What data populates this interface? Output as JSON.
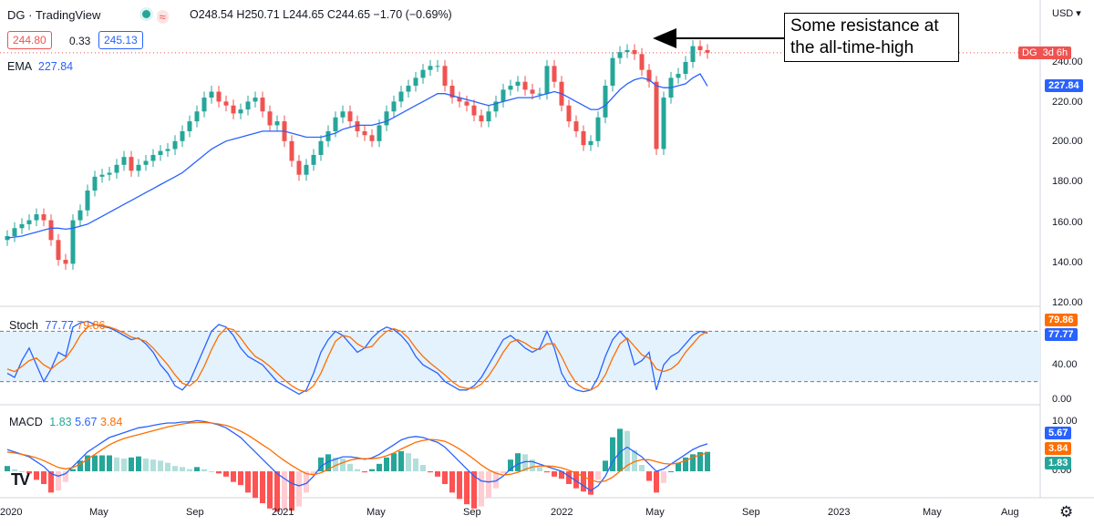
{
  "header": {
    "symbol": "DG",
    "provider": "TradingView",
    "ohlc": "O248.54  H250.71  L244.65  C244.65  −1.70 (−0.69%)",
    "bid": "244.80",
    "spread": "0.33",
    "ask": "245.13",
    "currency": "USD"
  },
  "indicators": {
    "ema_label": "EMA",
    "ema_value": "227.84",
    "stoch_label": "Stoch",
    "stoch_k": "77.77",
    "stoch_d": "79.86",
    "macd_label": "MACD",
    "macd_hist": "1.83",
    "macd_line": "5.67",
    "macd_signal": "3.84"
  },
  "price_axis": [
    "240.00",
    "220.00",
    "200.00",
    "180.00",
    "160.00",
    "140.00",
    "120.00"
  ],
  "stoch_axis": [
    "40.00",
    "0.00"
  ],
  "macd_axis": [
    "10.00",
    "0.00"
  ],
  "price_tags": {
    "symbol": "DG",
    "countdown": "3d 6h",
    "ema": "227.84",
    "stoch_d": "79.86",
    "stoch_k": "77.77",
    "macd_line": "5.67",
    "macd_signal": "3.84",
    "macd_hist": "1.83"
  },
  "time_axis": [
    "2020",
    "May",
    "Sep",
    "2021",
    "May",
    "Sep",
    "2022",
    "May",
    "Sep",
    "2023",
    "May",
    "Aug"
  ],
  "annotation": "Some resistance at the all-time-high",
  "colors": {
    "up": "#26a69a",
    "down": "#ef5350",
    "ema": "#2962ff",
    "stoch_k": "#2962ff",
    "stoch_d": "#ff6d00",
    "macd": "#2962ff",
    "signal": "#ff6d00"
  },
  "chart_data": {
    "type": "candlestick",
    "closes": [
      152,
      156,
      158,
      160,
      163,
      160,
      150,
      140,
      138,
      160,
      165,
      175,
      182,
      183,
      184,
      188,
      192,
      185,
      188,
      190,
      193,
      195,
      196,
      200,
      205,
      210,
      215,
      222,
      225,
      220,
      218,
      214,
      216,
      220,
      222,
      215,
      208,
      210,
      200,
      190,
      183,
      188,
      193,
      200,
      205,
      212,
      215,
      210,
      205,
      203,
      200,
      208,
      215,
      220,
      225,
      228,
      232,
      236,
      238,
      238,
      228,
      222,
      220,
      218,
      213,
      210,
      215,
      220,
      226,
      228,
      230,
      226,
      224,
      224,
      238,
      230,
      218,
      210,
      205,
      198,
      200,
      212,
      228,
      242,
      245,
      246,
      244,
      236,
      230,
      196,
      222,
      232,
      234,
      240,
      248,
      246,
      244.65
    ],
    "ema": [
      151,
      151.5,
      152,
      153,
      154,
      155,
      156,
      156,
      155.5,
      156,
      157,
      158,
      160,
      162,
      164,
      166,
      168,
      170,
      172,
      174,
      176,
      178,
      180,
      182,
      184,
      187,
      190,
      193,
      196,
      198,
      200,
      201,
      202,
      203,
      204,
      205,
      205,
      205,
      205,
      204,
      203,
      202,
      202,
      202,
      203,
      204,
      206,
      207,
      208,
      208,
      208,
      209,
      210,
      212,
      214,
      216,
      218,
      220,
      222,
      224,
      224,
      223,
      222,
      221,
      220,
      219,
      218,
      219,
      220,
      221,
      222,
      222,
      222,
      223,
      224,
      225,
      224,
      222,
      220,
      218,
      216,
      216,
      218,
      222,
      226,
      229,
      231,
      232,
      231,
      228,
      227,
      227,
      228,
      229,
      232,
      234,
      227.84
    ],
    "stoch_k": [
      30,
      25,
      45,
      60,
      40,
      20,
      35,
      55,
      50,
      85,
      90,
      92,
      88,
      86,
      84,
      80,
      75,
      70,
      72,
      65,
      55,
      40,
      30,
      15,
      10,
      20,
      40,
      60,
      80,
      88,
      85,
      75,
      60,
      50,
      45,
      40,
      30,
      20,
      15,
      10,
      5,
      10,
      30,
      55,
      70,
      80,
      75,
      65,
      55,
      60,
      72,
      80,
      85,
      82,
      75,
      65,
      50,
      40,
      35,
      30,
      20,
      15,
      10,
      10,
      15,
      25,
      40,
      55,
      70,
      75,
      68,
      60,
      55,
      60,
      80,
      60,
      30,
      15,
      10,
      8,
      10,
      25,
      50,
      70,
      80,
      70,
      40,
      45,
      55,
      10,
      40,
      50,
      55,
      65,
      75,
      80,
      77.77
    ],
    "stoch_d": [
      35,
      32,
      38,
      45,
      48,
      40,
      35,
      42,
      48,
      60,
      75,
      85,
      88,
      87,
      85,
      82,
      78,
      73,
      71,
      68,
      60,
      50,
      40,
      28,
      18,
      15,
      22,
      38,
      58,
      75,
      84,
      82,
      72,
      60,
      50,
      45,
      38,
      30,
      22,
      15,
      10,
      8,
      15,
      30,
      50,
      68,
      75,
      73,
      65,
      60,
      62,
      72,
      80,
      83,
      80,
      72,
      60,
      50,
      42,
      35,
      28,
      20,
      14,
      12,
      12,
      17,
      27,
      40,
      55,
      67,
      70,
      66,
      60,
      58,
      65,
      65,
      50,
      32,
      18,
      12,
      10,
      15,
      28,
      48,
      65,
      72,
      62,
      52,
      48,
      35,
      32,
      35,
      42,
      55,
      65,
      75,
      79.86
    ],
    "macd": [
      4.5,
      4,
      3.5,
      3,
      2,
      1,
      -0.5,
      -1,
      -0.5,
      1,
      2.5,
      4,
      5,
      6,
      7,
      7.5,
      8,
      8.5,
      9,
      9.2,
      9.5,
      9.8,
      10,
      10,
      10.2,
      10.2,
      10.5,
      10.3,
      10,
      9.6,
      9,
      8,
      7,
      5.5,
      4,
      2.5,
      1,
      -0.5,
      -1.5,
      -2.5,
      -3,
      -2.5,
      -1,
      1,
      2,
      2.5,
      3,
      3,
      2.8,
      2.5,
      2.8,
      3.5,
      4.5,
      5.5,
      6.5,
      7,
      7.2,
      7,
      6.5,
      6,
      5,
      3.5,
      2,
      0.5,
      -1,
      -2,
      -2.2,
      -2,
      -1,
      0.5,
      1.5,
      2,
      2,
      1.5,
      1,
      0.5,
      0,
      -1,
      -2,
      -3,
      -4,
      -3,
      -1,
      2,
      4,
      5,
      4,
      3,
      1.5,
      0,
      0.5,
      1.5,
      2.5,
      3.5,
      4.5,
      5.2,
      5.67
    ],
    "signal": [
      4,
      3.8,
      3.5,
      3.2,
      2.8,
      2.2,
      1.5,
      0.8,
      0.5,
      0.8,
      1.5,
      2.5,
      3.5,
      4.5,
      5.5,
      6.2,
      6.8,
      7.2,
      7.6,
      8,
      8.4,
      8.8,
      9.2,
      9.5,
      9.8,
      10,
      10.1,
      10.1,
      10,
      9.8,
      9.5,
      9,
      8.3,
      7.5,
      6.5,
      5.5,
      4.5,
      3.3,
      2.2,
      1.2,
      0.3,
      -0.5,
      -0.7,
      -0.3,
      0.4,
      1.2,
      1.8,
      2.3,
      2.6,
      2.6,
      2.6,
      2.8,
      3.2,
      3.8,
      4.6,
      5.3,
      6,
      6.4,
      6.6,
      6.5,
      6.2,
      5.5,
      4.6,
      3.6,
      2.5,
      1.3,
      0.3,
      -0.4,
      -0.8,
      -0.6,
      -0.2,
      0.4,
      0.9,
      1.1,
      1.1,
      1,
      0.7,
      0.2,
      -0.4,
      -1.1,
      -1.8,
      -2.2,
      -2,
      -1.2,
      0,
      1.2,
      2,
      2.4,
      2.4,
      2,
      1.6,
      1.5,
      1.7,
      2.2,
      2.9,
      3.4,
      3.84
    ]
  }
}
